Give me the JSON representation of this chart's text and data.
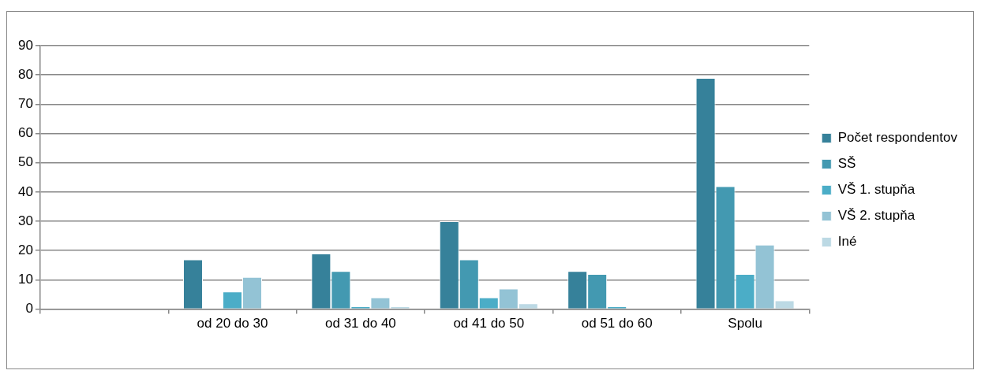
{
  "chart_data": {
    "type": "bar",
    "categories": [
      null,
      "od 20 do 30",
      "od 31 do 40",
      "od 41 do 50",
      "od 51 do 60",
      "Spolu"
    ],
    "series": [
      {
        "name": "Počet respondentov",
        "color": "#36819a",
        "values": [
          null,
          17,
          19,
          30,
          13,
          79
        ]
      },
      {
        "name": "SŠ",
        "color": "#4399b1",
        "values": [
          null,
          0,
          13,
          17,
          12,
          42
        ]
      },
      {
        "name": "VŠ 1. stupňa",
        "color": "#4badc7",
        "values": [
          null,
          6,
          1,
          4,
          1,
          12
        ]
      },
      {
        "name": "VŠ 2. stupňa",
        "color": "#93c3d5",
        "values": [
          null,
          11,
          4,
          7,
          0,
          22
        ]
      },
      {
        "name": "Iné",
        "color": "#bcd9e4",
        "values": [
          null,
          0,
          1,
          2,
          0,
          3
        ]
      }
    ],
    "ylim": [
      0,
      90
    ],
    "yticks": [
      0,
      10,
      20,
      30,
      40,
      50,
      60,
      70,
      80,
      90
    ],
    "grid": "y",
    "legend": "right"
  }
}
